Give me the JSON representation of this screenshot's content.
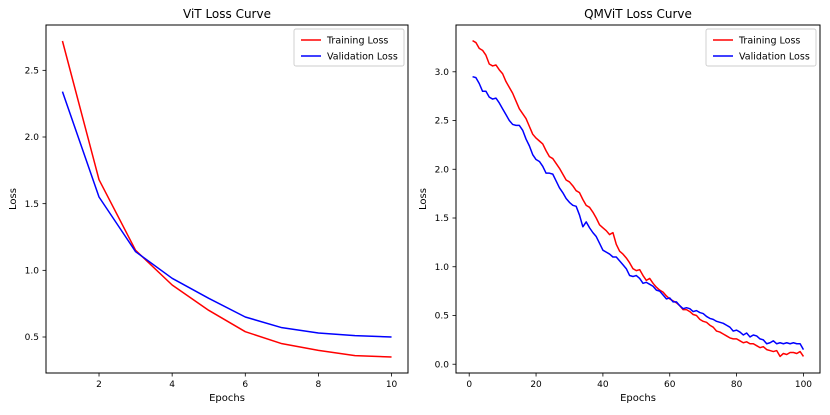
{
  "figure": {
    "background": "#ffffff"
  },
  "colors": {
    "training": "#ff0000",
    "validation": "#0000ff",
    "spine": "#000000",
    "text": "#000000",
    "legend_border": "#cccccc",
    "legend_bg": "#ffffff"
  },
  "chart_data": [
    {
      "id": "vit",
      "type": "line",
      "title": "ViT Loss Curve",
      "xlabel": "Epochs",
      "ylabel": "Loss",
      "grid": false,
      "legend_position": "upper right",
      "legend": [
        "Training Loss",
        "Validation Loss"
      ],
      "xlim": [
        0.55,
        10.45
      ],
      "ylim": [
        0.23,
        2.84
      ],
      "xticks": [
        2,
        4,
        6,
        8,
        10
      ],
      "xtick_labels": [
        "2",
        "4",
        "6",
        "8",
        "10"
      ],
      "yticks": [
        0.5,
        1.0,
        1.5,
        2.0,
        2.5
      ],
      "ytick_labels": [
        "0.5",
        "1.0",
        "1.5",
        "2.0",
        "2.5"
      ],
      "x": [
        1,
        2,
        3,
        4,
        5,
        6,
        7,
        8,
        9,
        10
      ],
      "series": [
        {
          "name": "Training Loss",
          "color": "#ff0000",
          "values": [
            2.72,
            1.68,
            1.15,
            0.89,
            0.7,
            0.54,
            0.45,
            0.4,
            0.36,
            0.35
          ]
        },
        {
          "name": "Validation Loss",
          "color": "#0000ff",
          "values": [
            2.34,
            1.55,
            1.14,
            0.94,
            0.79,
            0.65,
            0.57,
            0.53,
            0.51,
            0.5
          ]
        }
      ]
    },
    {
      "id": "qmvit",
      "type": "line",
      "title": "QMViT Loss Curve",
      "xlabel": "Epochs",
      "ylabel": "Loss",
      "grid": false,
      "legend_position": "upper right",
      "legend": [
        "Training Loss",
        "Validation Loss"
      ],
      "xlim": [
        -3.95,
        104.95
      ],
      "ylim": [
        -0.09,
        3.48
      ],
      "xticks": [
        0,
        20,
        40,
        60,
        80,
        100
      ],
      "xtick_labels": [
        "0",
        "20",
        "40",
        "60",
        "80",
        "100"
      ],
      "yticks": [
        0.0,
        0.5,
        1.0,
        1.5,
        2.0,
        2.5,
        3.0
      ],
      "ytick_labels": [
        "0.0",
        "0.5",
        "1.0",
        "1.5",
        "2.0",
        "2.5",
        "3.0"
      ],
      "x_range": [
        1,
        100
      ],
      "series": [
        {
          "name": "Training Loss",
          "color": "#ff0000",
          "values": [
            3.32,
            3.3,
            3.24,
            3.22,
            3.17,
            3.08,
            3.06,
            3.07,
            3.02,
            2.98,
            2.9,
            2.84,
            2.78,
            2.7,
            2.62,
            2.57,
            2.52,
            2.44,
            2.36,
            2.32,
            2.29,
            2.26,
            2.19,
            2.13,
            2.11,
            2.06,
            2.01,
            1.95,
            1.89,
            1.87,
            1.83,
            1.78,
            1.76,
            1.69,
            1.63,
            1.61,
            1.56,
            1.5,
            1.43,
            1.4,
            1.37,
            1.33,
            1.35,
            1.23,
            1.16,
            1.13,
            1.09,
            1.04,
            0.98,
            0.96,
            0.97,
            0.91,
            0.86,
            0.88,
            0.83,
            0.79,
            0.76,
            0.74,
            0.7,
            0.67,
            0.65,
            0.63,
            0.6,
            0.56,
            0.56,
            0.54,
            0.51,
            0.5,
            0.46,
            0.44,
            0.43,
            0.4,
            0.38,
            0.34,
            0.33,
            0.31,
            0.29,
            0.27,
            0.26,
            0.26,
            0.24,
            0.22,
            0.23,
            0.21,
            0.21,
            0.19,
            0.17,
            0.18,
            0.15,
            0.14,
            0.13,
            0.14,
            0.08,
            0.11,
            0.1,
            0.12,
            0.12,
            0.11,
            0.13,
            0.08
          ]
        },
        {
          "name": "Validation Loss",
          "color": "#0000ff",
          "values": [
            2.95,
            2.94,
            2.88,
            2.8,
            2.8,
            2.74,
            2.72,
            2.73,
            2.68,
            2.62,
            2.56,
            2.5,
            2.46,
            2.45,
            2.45,
            2.4,
            2.31,
            2.24,
            2.15,
            2.1,
            2.08,
            2.03,
            1.96,
            1.96,
            1.95,
            1.88,
            1.81,
            1.76,
            1.7,
            1.66,
            1.63,
            1.62,
            1.53,
            1.41,
            1.46,
            1.4,
            1.35,
            1.31,
            1.24,
            1.17,
            1.15,
            1.13,
            1.1,
            1.1,
            1.06,
            1.02,
            0.98,
            0.91,
            0.9,
            0.91,
            0.88,
            0.83,
            0.84,
            0.82,
            0.8,
            0.76,
            0.75,
            0.71,
            0.67,
            0.68,
            0.64,
            0.64,
            0.6,
            0.57,
            0.58,
            0.57,
            0.54,
            0.55,
            0.53,
            0.52,
            0.49,
            0.47,
            0.46,
            0.44,
            0.43,
            0.42,
            0.4,
            0.38,
            0.34,
            0.35,
            0.33,
            0.3,
            0.32,
            0.28,
            0.3,
            0.29,
            0.26,
            0.25,
            0.21,
            0.22,
            0.24,
            0.21,
            0.22,
            0.21,
            0.22,
            0.21,
            0.22,
            0.21,
            0.21,
            0.15
          ]
        }
      ]
    }
  ]
}
